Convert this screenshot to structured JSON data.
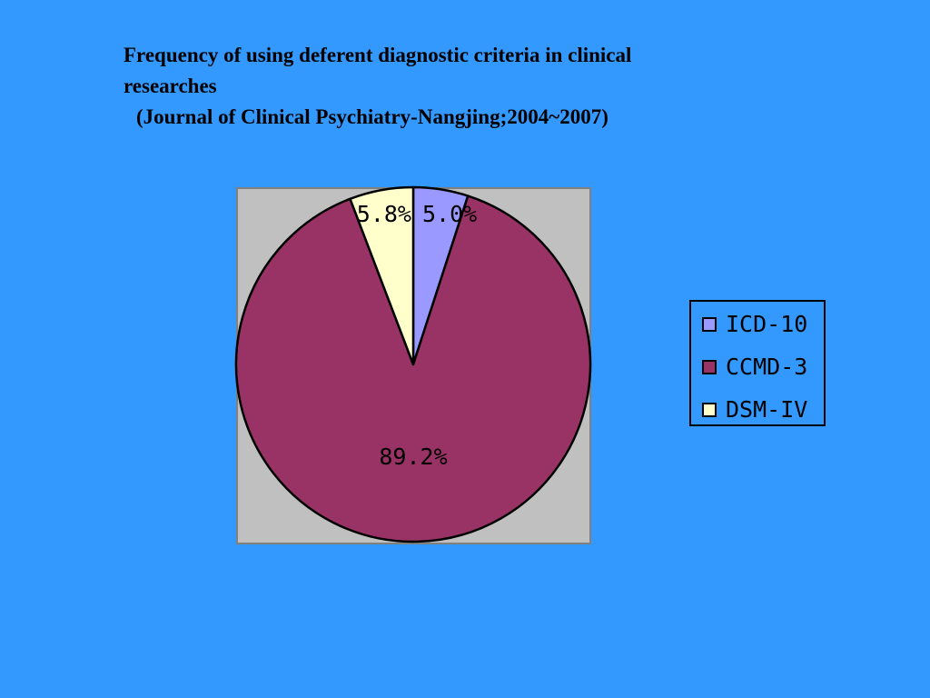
{
  "slide": {
    "background": "#3399FF"
  },
  "title": {
    "line1": "Frequency of using deferent diagnostic criteria in clinical",
    "line2": "researches",
    "line3": "(Journal of Clinical Psychiatry-Nangjing;2004~2007)"
  },
  "chart_data": {
    "type": "pie",
    "plot_background": "#C0C0C0",
    "legend_position": "right",
    "slices": [
      {
        "name": "ICD-10",
        "value": 5.0,
        "label": "5.0%",
        "color": "#9999FF"
      },
      {
        "name": "CCMD-3",
        "value": 89.2,
        "label": "89.2%",
        "color": "#993366"
      },
      {
        "name": "DSM-IV",
        "value": 5.8,
        "label": "5.8%",
        "color": "#FFFFCC"
      }
    ]
  }
}
